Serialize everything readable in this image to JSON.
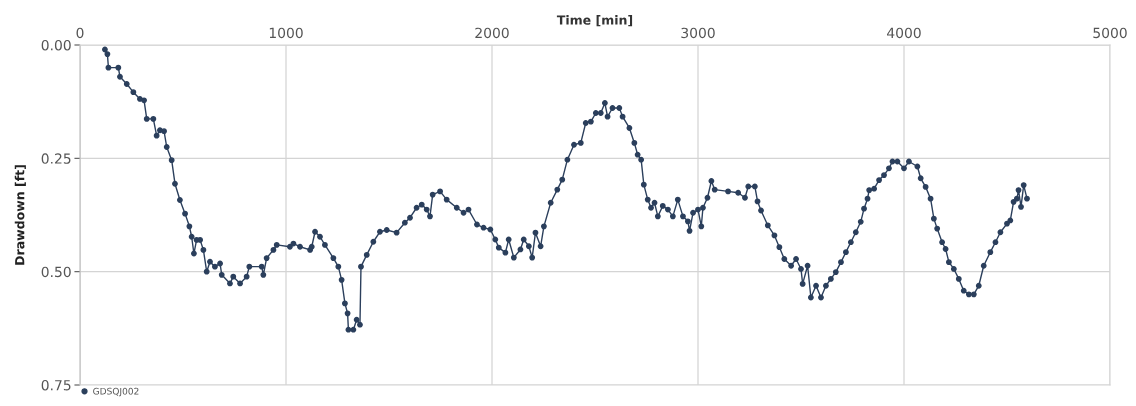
{
  "chart_data": {
    "type": "line",
    "xlabel": "Time [min]",
    "ylabel": "Drawdown [ft]",
    "xlim": [
      0,
      5000
    ],
    "xticks": [
      0,
      1000,
      2000,
      3000,
      4000,
      5000
    ],
    "ylim": [
      0.75,
      0
    ],
    "yticks": [
      {
        "value": 0,
        "label": "0.00"
      },
      {
        "value": 0.25,
        "label": "0.25"
      },
      {
        "value": 0.5,
        "label": "0.50"
      },
      {
        "value": 0.75,
        "label": "0.75"
      }
    ],
    "grid": true,
    "legend": "bottom left",
    "marker": "circle",
    "line_style": "solid",
    "series": [
      {
        "name": "GDSQJ002",
        "color": "#2b3f5c",
        "x": [
          121,
          133,
          138,
          186,
          194,
          227,
          259,
          291,
          311,
          324,
          356,
          372,
          388,
          408,
          421,
          445,
          461,
          485,
          510,
          531,
          542,
          553,
          566,
          583,
          599,
          615,
          631,
          655,
          680,
          688,
          728,
          744,
          777,
          809,
          822,
          882,
          890,
          906,
          939,
          955,
          1019,
          1036,
          1068,
          1117,
          1125,
          1141,
          1165,
          1189,
          1230,
          1254,
          1270,
          1286,
          1299,
          1303,
          1327,
          1343,
          1359,
          1364,
          1392,
          1424,
          1456,
          1489,
          1537,
          1577,
          1602,
          1634,
          1659,
          1683,
          1699,
          1712,
          1748,
          1780,
          1829,
          1862,
          1886,
          1927,
          1959,
          1992,
          2016,
          2033,
          2065,
          2081,
          2106,
          2138,
          2154,
          2179,
          2195,
          2211,
          2236,
          2252,
          2285,
          2317,
          2341,
          2366,
          2398,
          2431,
          2455,
          2480,
          2504,
          2528,
          2548,
          2561,
          2585,
          2618,
          2634,
          2667,
          2691,
          2707,
          2724,
          2737,
          2756,
          2772,
          2789,
          2805,
          2829,
          2854,
          2878,
          2902,
          2927,
          2951,
          2959,
          2976,
          3000,
          3016,
          3024,
          3046,
          3065,
          3081,
          3146,
          3195,
          3228,
          3244,
          3276,
          3289,
          3306,
          3339,
          3371,
          3395,
          3419,
          3452,
          3476,
          3500,
          3508,
          3532,
          3548,
          3573,
          3597,
          3621,
          3645,
          3669,
          3694,
          3718,
          3742,
          3766,
          3790,
          3806,
          3823,
          3831,
          3855,
          3879,
          3903,
          3927,
          3944,
          3968,
          4000,
          4024,
          4065,
          4081,
          4105,
          4129,
          4145,
          4161,
          4185,
          4202,
          4218,
          4242,
          4266,
          4290,
          4315,
          4339,
          4363,
          4387,
          4419,
          4444,
          4468,
          4500,
          4516,
          4532,
          4548,
          4556,
          4568,
          4581,
          4597
        ],
        "values": [
          0.01,
          0.02,
          0.05,
          0.05,
          0.07,
          0.086,
          0.104,
          0.119,
          0.122,
          0.163,
          0.163,
          0.2,
          0.188,
          0.19,
          0.225,
          0.254,
          0.306,
          0.342,
          0.372,
          0.4,
          0.423,
          0.46,
          0.43,
          0.43,
          0.452,
          0.5,
          0.478,
          0.489,
          0.482,
          0.507,
          0.526,
          0.511,
          0.526,
          0.511,
          0.489,
          0.489,
          0.507,
          0.47,
          0.452,
          0.441,
          0.445,
          0.438,
          0.445,
          0.452,
          0.445,
          0.412,
          0.423,
          0.441,
          0.47,
          0.489,
          0.518,
          0.57,
          0.592,
          0.628,
          0.628,
          0.606,
          0.617,
          0.489,
          0.463,
          0.434,
          0.412,
          0.408,
          0.414,
          0.392,
          0.381,
          0.359,
          0.352,
          0.363,
          0.378,
          0.33,
          0.323,
          0.341,
          0.359,
          0.37,
          0.363,
          0.396,
          0.403,
          0.407,
          0.429,
          0.447,
          0.458,
          0.429,
          0.469,
          0.451,
          0.429,
          0.444,
          0.469,
          0.414,
          0.444,
          0.4,
          0.348,
          0.319,
          0.297,
          0.253,
          0.22,
          0.216,
          0.172,
          0.169,
          0.15,
          0.15,
          0.128,
          0.158,
          0.139,
          0.139,
          0.158,
          0.183,
          0.216,
          0.242,
          0.253,
          0.308,
          0.341,
          0.359,
          0.348,
          0.378,
          0.355,
          0.363,
          0.378,
          0.341,
          0.378,
          0.389,
          0.41,
          0.37,
          0.363,
          0.4,
          0.359,
          0.337,
          0.3,
          0.319,
          0.323,
          0.326,
          0.337,
          0.312,
          0.312,
          0.345,
          0.365,
          0.398,
          0.42,
          0.446,
          0.472,
          0.487,
          0.472,
          0.494,
          0.527,
          0.487,
          0.557,
          0.531,
          0.557,
          0.531,
          0.516,
          0.501,
          0.479,
          0.457,
          0.435,
          0.413,
          0.39,
          0.361,
          0.339,
          0.32,
          0.317,
          0.298,
          0.287,
          0.272,
          0.257,
          0.257,
          0.272,
          0.257,
          0.268,
          0.294,
          0.313,
          0.339,
          0.383,
          0.405,
          0.435,
          0.45,
          0.479,
          0.494,
          0.516,
          0.542,
          0.55,
          0.55,
          0.531,
          0.487,
          0.457,
          0.435,
          0.413,
          0.394,
          0.387,
          0.346,
          0.339,
          0.32,
          0.357,
          0.309,
          0.339
        ]
      }
    ]
  }
}
